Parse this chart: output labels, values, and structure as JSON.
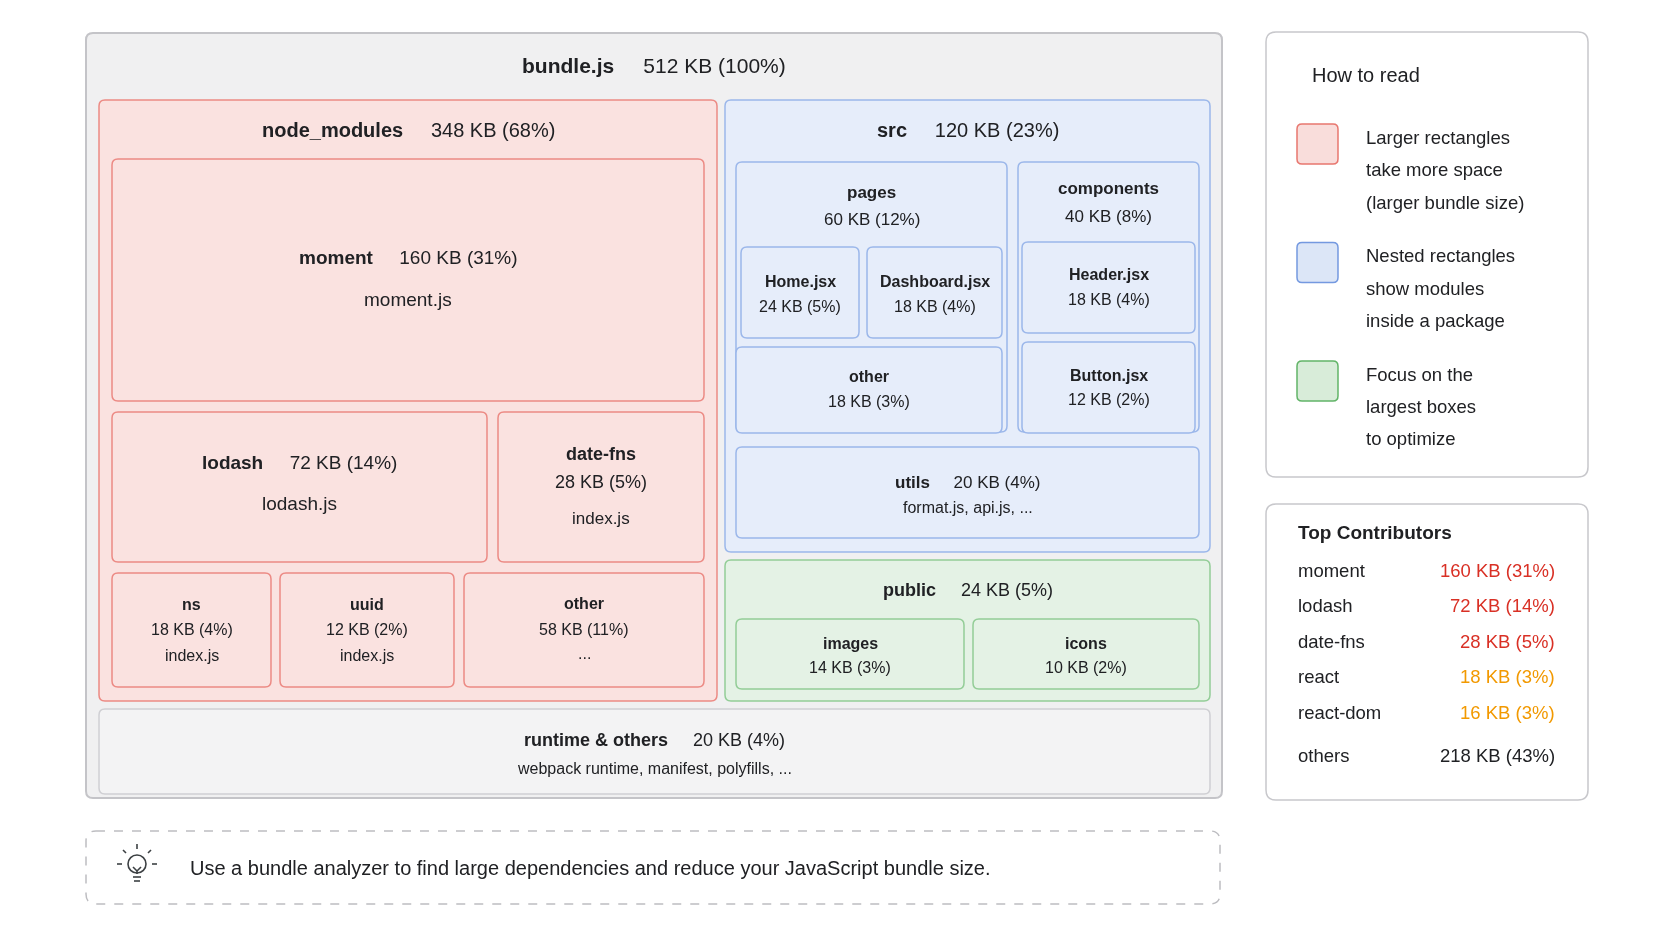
{
  "chart_data": [
    {
      "type": "other",
      "categories": [
        "bundle.js",
        "node_modules",
        "moment",
        "lodash",
        "date-fns",
        "ns",
        "uuid",
        "other",
        "src",
        "pages",
        "Home.jsx",
        "Dashboard.jsx",
        "other",
        "components",
        "Header.jsx",
        "Button.jsx",
        "utils",
        "public",
        "images",
        "icons",
        "runtime & others"
      ],
      "values": [
        512,
        348,
        160,
        72,
        28,
        18,
        12,
        58,
        120,
        60,
        24,
        18,
        18,
        40,
        18,
        12,
        20,
        24,
        14,
        10,
        20
      ],
      "value_labels": [
        "512 KB (100%)",
        "348 KB (68%)",
        "160 KB (31%)",
        "72 KB (14%)",
        "28 KB (5%)",
        "18 KB (4%)",
        "12 KB (2%)",
        "58 KB (11%)",
        "120 KB (23%)",
        "60 KB (12%)",
        "24 KB (5%)",
        "18 KB (4%)",
        "18 KB (3%)",
        "40 KB (8%)",
        "18 KB (4%)",
        "12 KB (2%)",
        "20 KB (4%)",
        "24 KB (5%)",
        "14 KB (3%)",
        "10 KB (2%)",
        "20 KB (4%)"
      ],
      "colors": [
        "#c4c4c8",
        "#ec8a84",
        "#ec8a84",
        "#ec8a84",
        "#ec8a84",
        "#ec8a84",
        "#ec8a84",
        "#ec8a84",
        "#9bb7ea",
        "#9bb7ea",
        "#9bb7ea",
        "#9bb7ea",
        "#9bb7ea",
        "#9bb7ea",
        "#9bb7ea",
        "#9bb7ea",
        "#9bb7ea",
        "#93cd97",
        "#93cd97",
        "#93cd97",
        "#cfcfd3"
      ],
      "annotations": [
        "moment.js",
        "lodash.js",
        "index.js",
        "index.js",
        "index.js",
        "...",
        "format.js, api.js, ...",
        "webpack runtime, manifest, polyfills, ...",
        "Use a bundle analyzer to find large dependencies and reduce your JavaScript bundle size."
      ]
    },
    {
      "type": "other",
      "title": "How to read",
      "categories": [
        "Larger rectangles\ntake more space\n(larger bundle size)",
        "Nested rectangles\nshow modules\ninside a package",
        "Focus on the\nlargest boxes\nto optimize"
      ],
      "colors": [
        "#e8776f",
        "#7499e0",
        "#62b468"
      ]
    },
    {
      "type": "other",
      "title": "Top Contributors",
      "categories": [
        "moment",
        "lodash",
        "date-fns",
        "react",
        "react-dom",
        "others"
      ],
      "values": [
        160,
        72,
        28,
        18,
        16,
        218
      ],
      "value_labels": [
        "160 KB (31%)",
        "72 KB (14%)",
        "28 KB (5%)",
        "18 KB (3%)",
        "16 KB (3%)",
        "218 KB (43%)"
      ]
    }
  ]
}
